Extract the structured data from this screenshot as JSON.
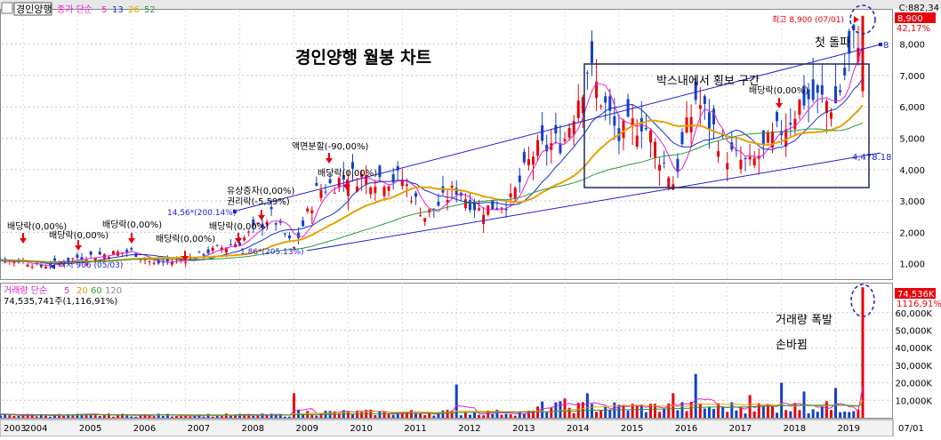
{
  "app": {
    "symbol_name": "경인양행",
    "chart_title": "경인양행 월봉 차트",
    "price_legend": {
      "prefix": "종가 단순",
      "ma_periods": [
        "5",
        "13",
        "26",
        "52"
      ]
    },
    "volume_legend": {
      "prefix": "거래량 단순",
      "ma_periods": [
        "5",
        "20",
        "60",
        "120"
      ]
    },
    "volume_current_text": "74,535,741주(1,116,91%)"
  },
  "annotations": {
    "box_label": "박스내에서 횡보 구간",
    "breakout_label": "첫 돌파",
    "volume_label_1": "거래량 폭발",
    "volume_label_2": "손바뀜",
    "high_label": "최고 8,900 (07/01)",
    "low_label": "최저 906 (05/03)",
    "trend_value_high": "8",
    "trend_value_low": "4,478.18",
    "point_label_1": "14,56*(200.14%)",
    "point_label_2": "1,86*(205.13%)",
    "events": [
      {
        "text": "배당락(0,00%)",
        "label_x": 8,
        "label_y": 258,
        "arrow_x": 26,
        "arrow_y": 262
      },
      {
        "text": "배당락(0,00%)",
        "label_x": 55,
        "label_y": 268,
        "arrow_x": 88,
        "arrow_y": 270
      },
      {
        "text": "배당락(0,00%)",
        "label_x": 115,
        "label_y": 256,
        "arrow_x": 148,
        "arrow_y": 262
      },
      {
        "text": "배당락(0,00%)",
        "label_x": 175,
        "label_y": 272,
        "arrow_x": 208,
        "arrow_y": 282
      },
      {
        "text": "배당락(0,00%)",
        "label_x": 235,
        "label_y": 258,
        "arrow_x": 268,
        "arrow_y": 262
      },
      {
        "text": "유상증자(0,00%)",
        "label_x": 255,
        "label_y": 218,
        "arrow_x": 0,
        "arrow_y": 0
      },
      {
        "text": "권리락(-5,59%)",
        "label_x": 255,
        "label_y": 230,
        "arrow_x": 294,
        "arrow_y": 236
      },
      {
        "text": "액면분할(-90,00%)",
        "label_x": 328,
        "label_y": 168,
        "arrow_x": 370,
        "arrow_y": 172
      },
      {
        "text": "배당락(0,00%)",
        "label_x": 357,
        "label_y": 198,
        "arrow_x": 390,
        "arrow_y": 202
      },
      {
        "text": "배당락(0,00%)",
        "label_x": 842,
        "label_y": 105,
        "arrow_x": 876,
        "arrow_y": 110
      }
    ]
  },
  "price_axis": {
    "tick_labels": [
      "8,000",
      "7,000",
      "6,000",
      "5,000",
      "4,000",
      "3,000",
      "2,000",
      "1,000"
    ],
    "top_label": "C:882,34",
    "current_price_label": "8,900",
    "current_pct_label": "42,17%"
  },
  "volume_axis": {
    "tick_labels": [
      "60,000K",
      "50,000K",
      "40,000K",
      "30,000K",
      "20,000K",
      "10,000K"
    ],
    "current_label": "74,536K",
    "current_pct_label": "1116,91%"
  },
  "time_axis": {
    "labels": [
      "2003",
      "2004",
      "2005",
      "2006",
      "2007",
      "2008",
      "2009",
      "2010",
      "2011",
      "2012",
      "2013",
      "2014",
      "2015",
      "2016",
      "2017",
      "2018",
      "2019",
      "07/01"
    ]
  },
  "colors": {
    "up": "#e8000b",
    "down": "#1240c8",
    "ma5": "#e020d0",
    "ma13": "#1a2fd0",
    "ma26": "#e8a000",
    "ma52": "#2a9a3a",
    "trend": "#2020d8",
    "box": "#1a2a5a",
    "circle": "#2020b0"
  },
  "chart_data": [
    {
      "type": "line",
      "title": "경인양행 월봉 차트",
      "x_range": [
        "2003",
        "2019-07"
      ],
      "y_range": [
        0,
        8900
      ],
      "series": [
        {
          "name": "종가",
          "values": [
            {
              "x": "2003",
              "y": 1150
            },
            {
              "x": "2004",
              "y": 1080
            },
            {
              "x": "2004-05",
              "y": 906
            },
            {
              "x": "2005",
              "y": 1200
            },
            {
              "x": "2006",
              "y": 1400
            },
            {
              "x": "2006-06",
              "y": 1000
            },
            {
              "x": "2007",
              "y": 1150
            },
            {
              "x": "2008",
              "y": 1700
            },
            {
              "x": "2008-08",
              "y": 2550
            },
            {
              "x": "2009",
              "y": 1500
            },
            {
              "x": "2009-06",
              "y": 3300
            },
            {
              "x": "2010",
              "y": 3800
            },
            {
              "x": "2011",
              "y": 3700
            },
            {
              "x": "2011-06",
              "y": 2500
            },
            {
              "x": "2012",
              "y": 3400
            },
            {
              "x": "2012-06",
              "y": 2700
            },
            {
              "x": "2013",
              "y": 3000
            },
            {
              "x": "2013-06",
              "y": 4500
            },
            {
              "x": "2014",
              "y": 5000
            },
            {
              "x": "2014-06",
              "y": 7300
            },
            {
              "x": "2015",
              "y": 5000
            },
            {
              "x": "2015-06",
              "y": 5600
            },
            {
              "x": "2016",
              "y": 3600
            },
            {
              "x": "2016-06",
              "y": 6300
            },
            {
              "x": "2017",
              "y": 4500
            },
            {
              "x": "2017-06",
              "y": 4100
            },
            {
              "x": "2018",
              "y": 5300
            },
            {
              "x": "2018-06",
              "y": 6300
            },
            {
              "x": "2019",
              "y": 6100
            },
            {
              "x": "2019-07",
              "y": 8900
            }
          ]
        }
      ],
      "ylabel": "",
      "ticks": [
        1000,
        2000,
        3000,
        4000,
        5000,
        6000,
        7000,
        8000
      ],
      "ma_periods": [
        5,
        13,
        26,
        52
      ],
      "high": {
        "value": 8900,
        "date": "07/01"
      },
      "low": {
        "value": 906,
        "date": "05/03"
      }
    },
    {
      "type": "bar",
      "title": "거래량",
      "ylim": [
        0,
        74536
      ],
      "unit": "K",
      "ticks": [
        10000,
        20000,
        30000,
        40000,
        50000,
        60000
      ],
      "latest": {
        "value": 74536,
        "pct": 1116.91
      },
      "notable_spikes": [
        {
          "x": "2003",
          "y": 6000
        },
        {
          "x": "2009",
          "y": 14000
        },
        {
          "x": "2012",
          "y": 19000
        },
        {
          "x": "2014",
          "y": 11000
        },
        {
          "x": "2014-06",
          "y": 14000
        },
        {
          "x": "2016",
          "y": 14000
        },
        {
          "x": "2016-06",
          "y": 25000
        },
        {
          "x": "2017-06",
          "y": 13000
        },
        {
          "x": "2018",
          "y": 20000
        },
        {
          "x": "2018-06",
          "y": 15000
        },
        {
          "x": "2019",
          "y": 17000
        },
        {
          "x": "2019-07",
          "y": 74536
        }
      ],
      "ma_periods": [
        5,
        20,
        60,
        120
      ]
    }
  ]
}
